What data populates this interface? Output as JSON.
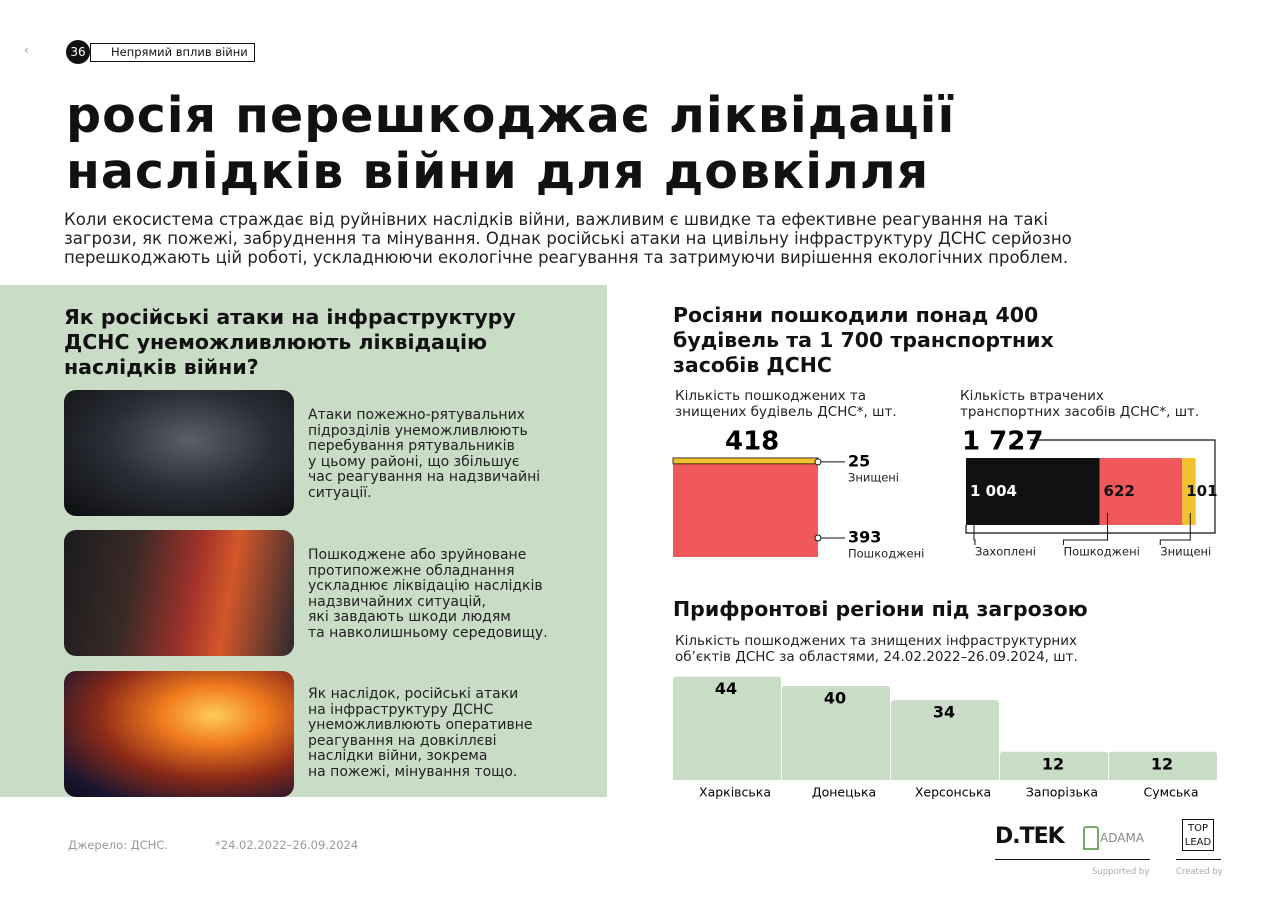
{
  "header": {
    "page_number": "36",
    "section": "Непрямий вплив війни"
  },
  "title": [
    "росія перешкоджає ліквідації",
    "наслідків війни для довкілля"
  ],
  "intro": [
    "Коли екосистема страждає від руйнівних наслідків війни, важливим є швидке та ефективне реагування на такі",
    "загрози, як пожежі, забруднення та мінування. Однак російські атаки на цивільну інфраструктуру ДСНС серйозно",
    "перешкоджають цій роботі, ускладнюючи екологічне реагування та затримуючи вирішення екологічних проблем."
  ],
  "left_panel": {
    "title": [
      "Як російські атаки на інфраструктуру",
      "ДСНС унеможливлюють ліквідацію",
      "наслідків війни?"
    ],
    "items": [
      {
        "text": [
          "Атаки пожежно-рятувальних",
          "підрозділів унеможливлюють",
          "перебування рятувальників",
          "у цьому районі, що збільшує",
          "час реагування на надзвичайні",
          "ситуації."
        ]
      },
      {
        "text": [
          "Пошкоджене або зруйноване",
          "протипожежне обладнання",
          "ускладнює ліквідацію наслідків",
          "надзвичайних ситуацій,",
          "які завдають шкоди людям",
          "та навколишньому середовищу."
        ]
      },
      {
        "text": [
          "Як наслідок, російські атаки",
          "на інфраструктуру ДСНС",
          "унеможливлюють оперативне",
          "реагування на довкіллєві",
          "наслідки війни, зокрема",
          "на пожежі, мінування тощо."
        ]
      }
    ]
  },
  "right_title": [
    "Росіяни пошкодили понад 400",
    "будівель та 1 700 транспортних",
    "засобів ДСНС"
  ],
  "chart_data": [
    {
      "type": "stacked_column",
      "title": [
        "Кількість пошкоджених та",
        "знищених будівель ДСНС*, шт."
      ],
      "total": 418,
      "series": [
        {
          "name": "Знищені",
          "color": "#f2c12e",
          "values": [
            25
          ]
        },
        {
          "name": "Пошкоджені",
          "color": "#f0585c",
          "values": [
            393
          ]
        }
      ]
    },
    {
      "type": "stacked_bar",
      "title": [
        "Кількість втрачених",
        "транспортних засобів ДСНС*, шт."
      ],
      "total": {
        "value": 1727,
        "label": "1 727"
      },
      "series": [
        {
          "name": "Захоплені",
          "color": "#111111",
          "values": [
            1004
          ],
          "value_labels": [
            "1 004"
          ]
        },
        {
          "name": "Пошкоджені",
          "color": "#f0585c",
          "values": [
            622
          ]
        },
        {
          "name": "Знищені",
          "color": "#f2c12e",
          "values": [
            101
          ]
        }
      ]
    },
    {
      "type": "bar",
      "title": "Прифронтові регіони під загрозою",
      "subtitle": [
        "Кількість пошкоджених та знищених інфраструктурних",
        "об’єктів ДСНС за областями, 24.02.2022–26.09.2024, шт."
      ],
      "categories": [
        "Харківська",
        "Донецька",
        "Херсонська",
        "Запорізька",
        "Сумська"
      ],
      "values": [
        44,
        40,
        34,
        12,
        12
      ],
      "color": "#c9dcc6"
    }
  ],
  "footer": {
    "source": "Джерело: ДСНС.",
    "note": "*24.02.2022–26.09.2024",
    "logos": [
      "D.TEK",
      "ADAMA",
      "TOP",
      "LEAD"
    ],
    "supported_by": "Supported by",
    "created_by": "Created by"
  }
}
